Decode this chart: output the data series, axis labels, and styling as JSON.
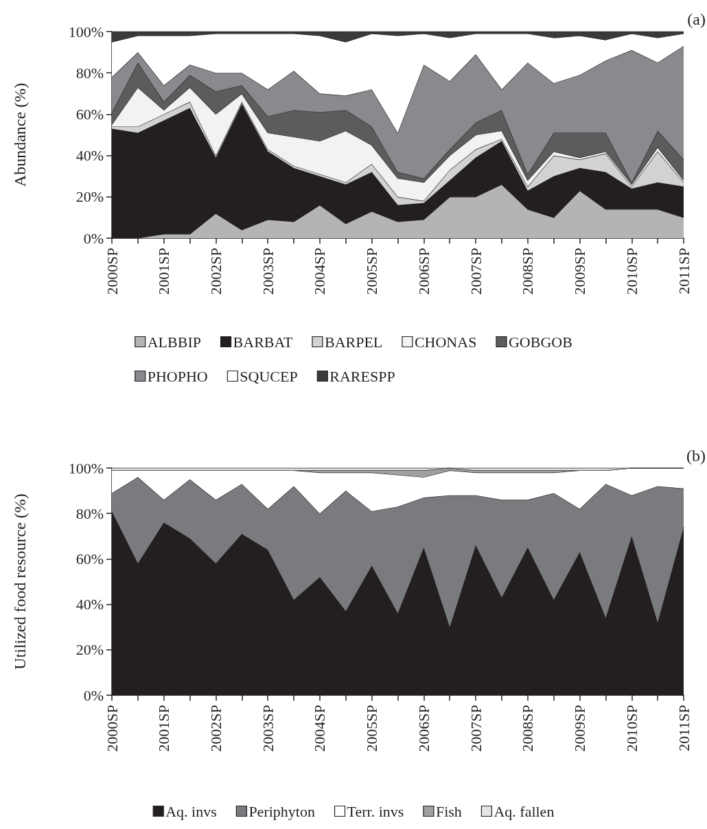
{
  "chart_data": [
    {
      "type": "area",
      "stacked": true,
      "ylabel": "Abundance (%)",
      "annotations": [
        "(a)"
      ],
      "categories": [
        "2000SP",
        null,
        "2001SP",
        null,
        "2002SP",
        null,
        "2003SP",
        null,
        "2004SP",
        null,
        "2005SP",
        null,
        "2006SP",
        null,
        "2007SP",
        null,
        "2008SP",
        null,
        "2009SP",
        null,
        "2010SP",
        null,
        "2011SP"
      ],
      "ylim": [
        0,
        100
      ],
      "yticks": [
        {
          "value": 0,
          "label": "0%"
        },
        {
          "value": 20,
          "label": "20%"
        },
        {
          "value": 40,
          "label": "40%"
        },
        {
          "value": 60,
          "label": "60%"
        },
        {
          "value": 80,
          "label": "80%"
        },
        {
          "value": 100,
          "label": "100%"
        }
      ],
      "grid": false,
      "legend": "bottom",
      "marker": "none",
      "series": [
        {
          "name": "ALBBIP",
          "color": "#b4b4b4",
          "values": [
            0,
            0,
            2,
            2,
            12,
            4,
            9,
            8,
            16,
            7,
            13,
            8,
            9,
            20,
            20,
            26,
            14,
            10,
            23,
            14,
            14,
            14,
            10
          ]
        },
        {
          "name": "BARBAT",
          "color": "#231f20",
          "values": [
            53,
            51,
            55,
            61,
            27,
            61,
            33,
            26,
            14,
            19,
            19,
            8,
            8,
            8,
            19,
            21,
            9,
            20,
            11,
            18,
            10,
            13,
            15
          ]
        },
        {
          "name": "BARPEL",
          "color": "#d2d2d2",
          "values": [
            1,
            3,
            3,
            3,
            1,
            1,
            1,
            1,
            1,
            1,
            4,
            4,
            1,
            5,
            4,
            1,
            2,
            10,
            4,
            9,
            1,
            15,
            2
          ]
        },
        {
          "name": "CHONAS",
          "color": "#f2f2f2",
          "values": [
            1,
            19,
            2,
            7,
            20,
            4,
            8,
            14,
            16,
            25,
            9,
            9,
            9,
            7,
            7,
            4,
            3,
            2,
            1,
            1,
            1,
            2,
            1
          ]
        },
        {
          "name": "GOBGOB",
          "color": "#5c5c5c",
          "values": [
            6,
            12,
            4,
            6,
            11,
            4,
            8,
            13,
            14,
            10,
            9,
            3,
            2,
            3,
            6,
            10,
            3,
            9,
            12,
            9,
            1,
            8,
            10
          ]
        },
        {
          "name": "PHOPHO",
          "color": "#898a8e",
          "values": [
            17,
            5,
            8,
            5,
            9,
            6,
            13,
            19,
            9,
            7,
            18,
            19,
            55,
            33,
            33,
            10,
            54,
            24,
            28,
            35,
            64,
            33,
            55
          ]
        },
        {
          "name": "SQUCEP",
          "color": "#ffffff",
          "values": [
            17,
            8,
            24,
            14,
            19,
            19,
            27,
            18,
            28,
            26,
            27,
            47,
            15,
            21,
            10,
            27,
            14,
            22,
            19,
            10,
            8,
            12,
            6
          ]
        },
        {
          "name": "RARESPP",
          "color": "#3a3a3a",
          "values": [
            5,
            2,
            2,
            2,
            1,
            1,
            1,
            1,
            2,
            5,
            1,
            2,
            1,
            3,
            1,
            1,
            1,
            3,
            2,
            4,
            1,
            3,
            1
          ]
        }
      ]
    },
    {
      "type": "area",
      "stacked": true,
      "ylabel": "Utilized food resource (%)",
      "annotations": [
        "(b)"
      ],
      "categories": [
        "2000SP",
        null,
        "2001SP",
        null,
        "2002SP",
        null,
        "2003SP",
        null,
        "2004SP",
        null,
        "2005SP",
        null,
        "2006SP",
        null,
        "2007SP",
        null,
        "2008SP",
        null,
        "2009SP",
        null,
        "2010SP",
        null,
        "2011SP"
      ],
      "ylim": [
        0,
        100
      ],
      "yticks": [
        {
          "value": 0,
          "label": "0%"
        },
        {
          "value": 20,
          "label": "20%"
        },
        {
          "value": 40,
          "label": "40%"
        },
        {
          "value": 60,
          "label": "60%"
        },
        {
          "value": 80,
          "label": "80%"
        },
        {
          "value": 100,
          "label": "100%"
        }
      ],
      "grid": false,
      "legend": "bottom",
      "marker": "none",
      "series": [
        {
          "name": "Aq. invs",
          "color": "#231f20",
          "values": [
            81,
            58,
            76,
            69,
            58,
            71,
            64,
            42,
            52,
            37,
            57,
            36,
            65,
            30,
            66,
            43,
            65,
            42,
            63,
            34,
            70,
            32,
            74
          ]
        },
        {
          "name": "Periphyton",
          "color": "#7a7b7f",
          "values": [
            8,
            38,
            10,
            26,
            28,
            22,
            18,
            50,
            28,
            53,
            24,
            47,
            22,
            58,
            22,
            43,
            21,
            47,
            19,
            59,
            18,
            60,
            17
          ]
        },
        {
          "name": "Terr. invs",
          "color": "#ffffff",
          "values": [
            10,
            3,
            13,
            4,
            13,
            6,
            17,
            7,
            18,
            8,
            17,
            14,
            9,
            11,
            10,
            12,
            12,
            9,
            17,
            6,
            12,
            8,
            9
          ]
        },
        {
          "name": "Fish",
          "color": "#a0a0a0",
          "values": [
            0,
            0,
            0,
            0,
            0,
            0,
            0,
            0,
            1,
            1,
            1,
            2,
            3,
            1,
            1,
            1,
            1,
            1,
            0,
            0,
            0,
            0,
            0
          ]
        },
        {
          "name": "Aq. fallen",
          "color": "#e4e4e4",
          "values": [
            1,
            1,
            1,
            1,
            1,
            1,
            1,
            1,
            1,
            1,
            1,
            1,
            1,
            0,
            1,
            1,
            1,
            1,
            1,
            1,
            0,
            0,
            0
          ]
        }
      ]
    }
  ]
}
